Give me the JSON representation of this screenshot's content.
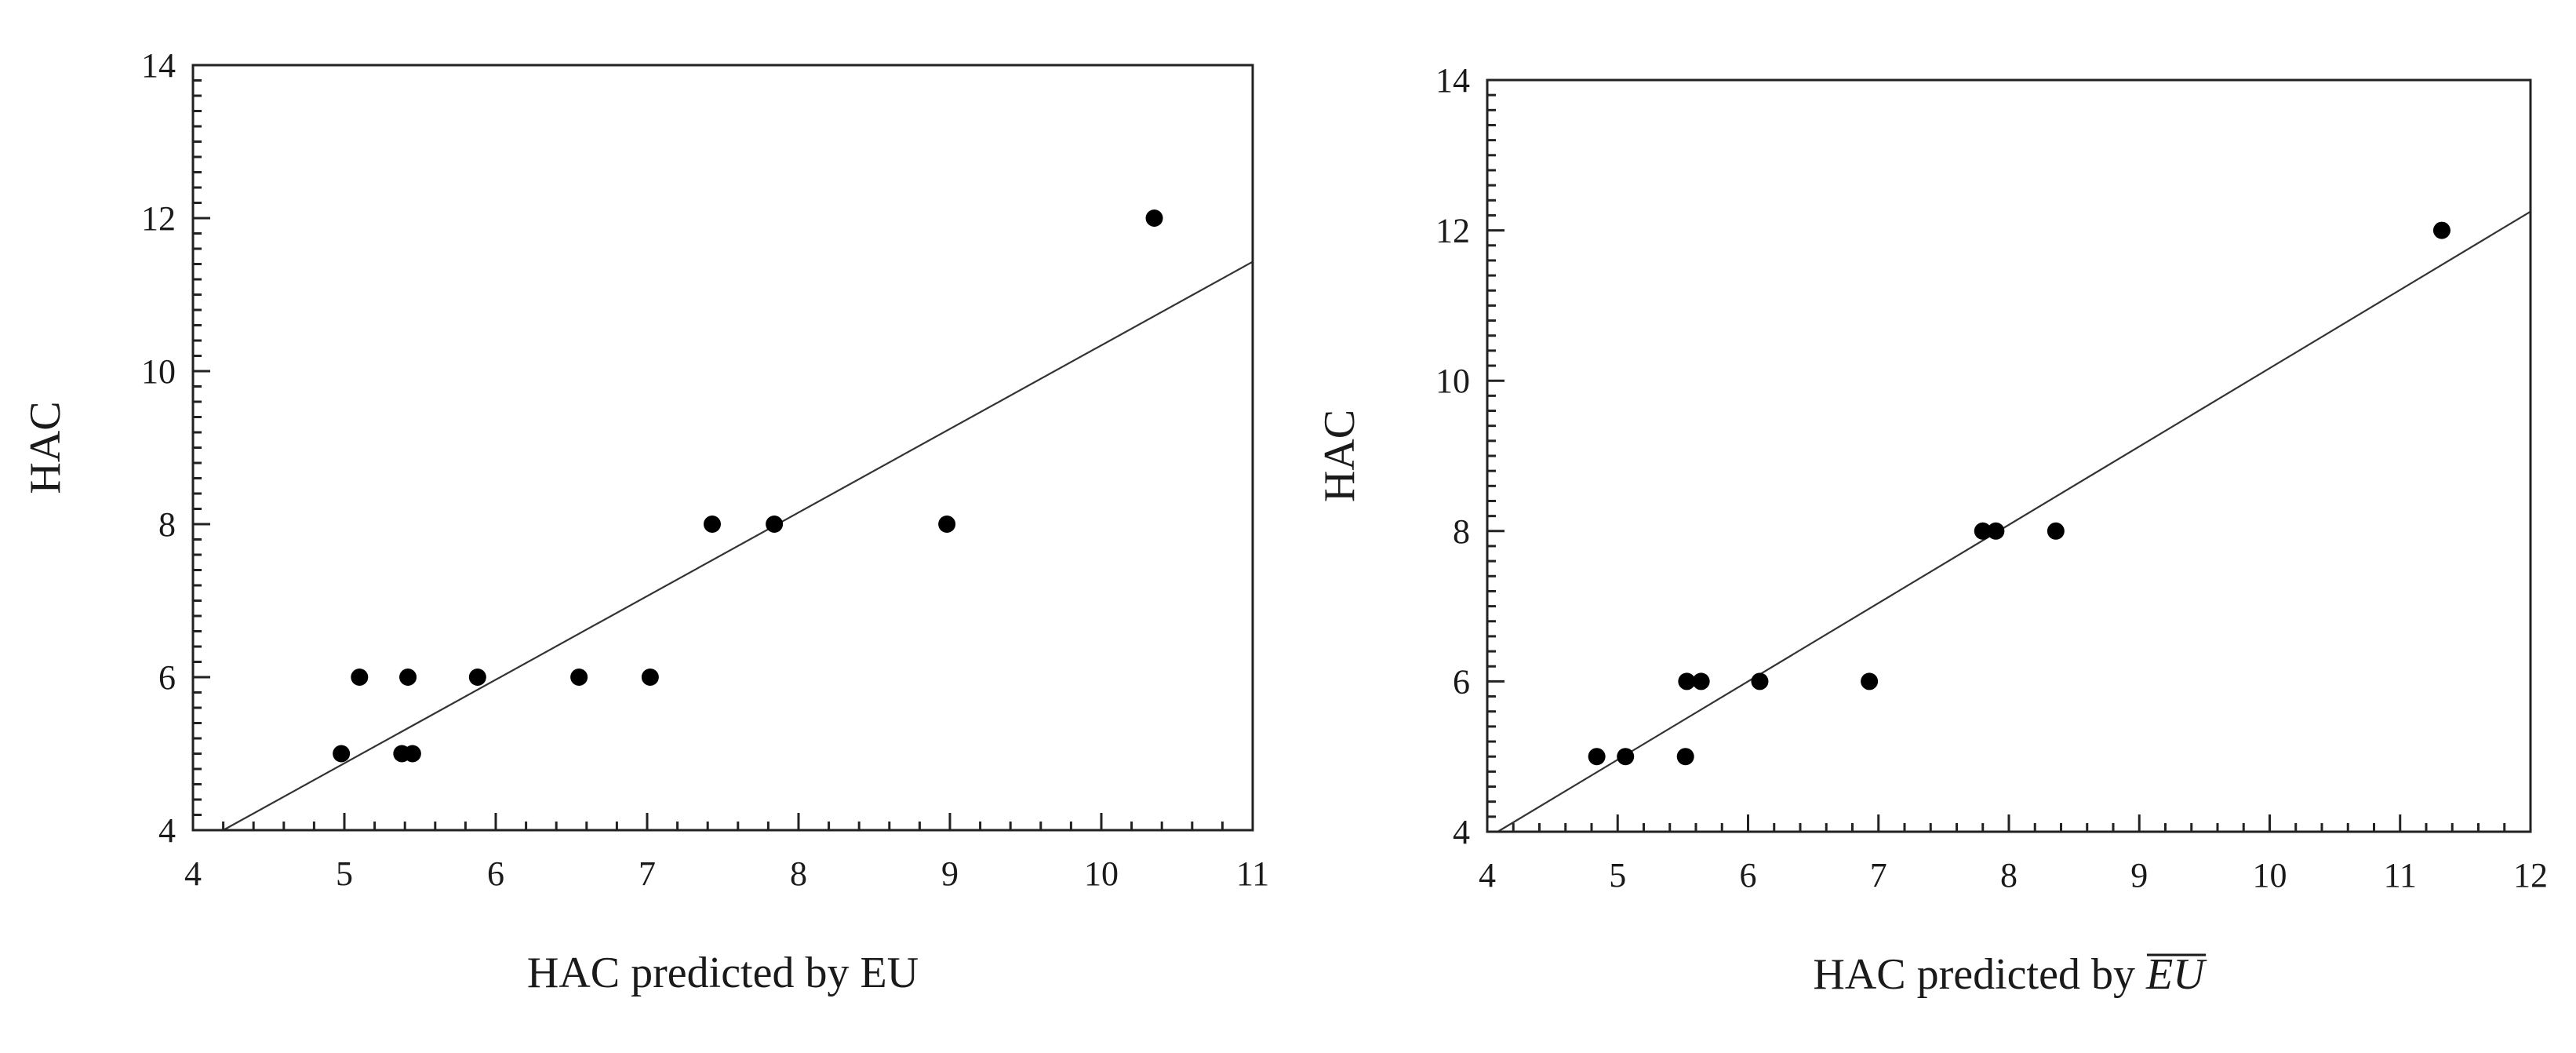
{
  "chart_data": [
    {
      "type": "scatter",
      "title": "",
      "xlabel": "HAC predicted by EU",
      "ylabel": "HAC",
      "xlim": [
        4,
        11
      ],
      "ylim": [
        4,
        14
      ],
      "x_ticks": [
        4,
        5,
        6,
        7,
        8,
        9,
        10,
        11
      ],
      "y_ticks": [
        4,
        6,
        8,
        10,
        12,
        14
      ],
      "minor_step": 0.2,
      "grid": false,
      "legend": "none",
      "points": [
        {
          "x": 4.98,
          "y": 5
        },
        {
          "x": 5.38,
          "y": 5
        },
        {
          "x": 5.45,
          "y": 5
        },
        {
          "x": 5.1,
          "y": 6
        },
        {
          "x": 5.42,
          "y": 6
        },
        {
          "x": 5.88,
          "y": 6
        },
        {
          "x": 6.55,
          "y": 6
        },
        {
          "x": 7.02,
          "y": 6
        },
        {
          "x": 7.43,
          "y": 8
        },
        {
          "x": 7.84,
          "y": 8
        },
        {
          "x": 8.98,
          "y": 8
        },
        {
          "x": 10.35,
          "y": 12
        }
      ],
      "fit_line": {
        "x": [
          4.2,
          11
        ],
        "y": [
          4,
          11.43
        ]
      }
    },
    {
      "type": "scatter",
      "title": "",
      "xlabel": "HAC predicted by ",
      "xlabel_overlined": "EU",
      "ylabel": "HAC",
      "xlim": [
        4,
        12
      ],
      "ylim": [
        4,
        14
      ],
      "x_ticks": [
        4,
        5,
        6,
        7,
        8,
        9,
        10,
        11,
        12
      ],
      "y_ticks": [
        4,
        6,
        8,
        10,
        12,
        14
      ],
      "minor_step": 0.2,
      "grid": false,
      "legend": "none",
      "points": [
        {
          "x": 4.84,
          "y": 5
        },
        {
          "x": 5.06,
          "y": 5
        },
        {
          "x": 5.52,
          "y": 5
        },
        {
          "x": 5.53,
          "y": 6
        },
        {
          "x": 5.64,
          "y": 6
        },
        {
          "x": 6.09,
          "y": 6
        },
        {
          "x": 6.93,
          "y": 6
        },
        {
          "x": 7.8,
          "y": 8
        },
        {
          "x": 7.9,
          "y": 8
        },
        {
          "x": 8.36,
          "y": 8
        },
        {
          "x": 11.32,
          "y": 12
        }
      ],
      "fit_line": {
        "x": [
          4.08,
          12
        ],
        "y": [
          4,
          12.25
        ]
      }
    }
  ]
}
